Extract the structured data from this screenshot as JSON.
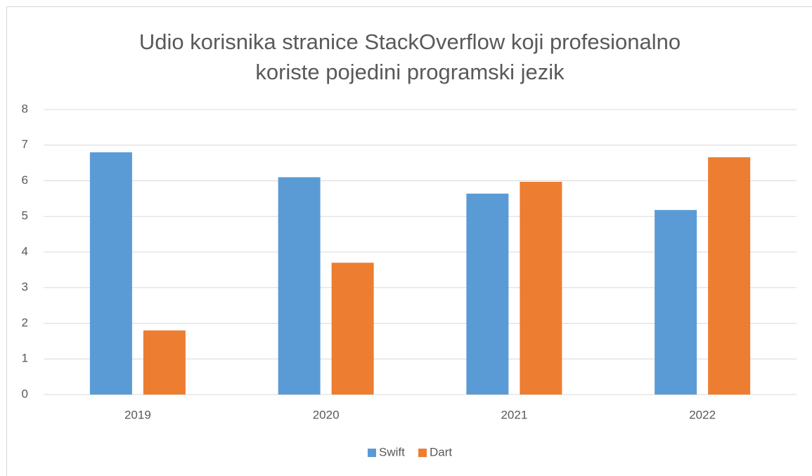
{
  "chart_data": {
    "type": "bar",
    "title": [
      "Udio korisnika stranice StackOverflow koji profesionalno",
      "koriste pojedini programski jezik"
    ],
    "categories": [
      "2019",
      "2020",
      "2021",
      "2022"
    ],
    "series": [
      {
        "name": "Swift",
        "color": "#5b9bd5",
        "values": [
          6.8,
          6.1,
          5.64,
          5.18
        ]
      },
      {
        "name": "Dart",
        "color": "#ed7d31",
        "values": [
          1.8,
          3.7,
          5.97,
          6.66
        ]
      }
    ],
    "ylim": [
      0,
      8
    ],
    "yticks": [
      0,
      1,
      2,
      3,
      4,
      5,
      6,
      7,
      8
    ],
    "grid": true,
    "legend": "bottom"
  }
}
